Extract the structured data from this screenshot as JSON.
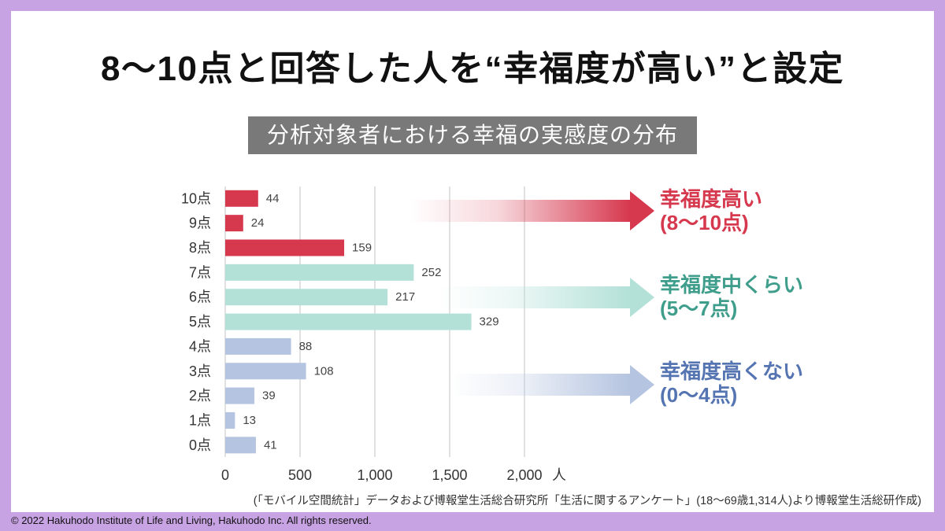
{
  "title": "8〜10点と回答した人を“幸福度が高い”と設定",
  "colors": {
    "frame": "#c8a3e3",
    "panel": "#ffffff",
    "chart_title_box": "#797979"
  },
  "chart_data": {
    "type": "bar",
    "orientation": "horizontal",
    "title": "分析対象者における幸福の実感度の分布",
    "categories": [
      "10点",
      "9点",
      "8点",
      "7点",
      "6点",
      "5点",
      "4点",
      "3点",
      "2点",
      "1点",
      "0点"
    ],
    "values": [
      44,
      24,
      159,
      252,
      217,
      329,
      88,
      108,
      39,
      13,
      41
    ],
    "xlabel": "人",
    "xlim": [
      0,
      2000
    ],
    "x_ticks": [
      0,
      500,
      1000,
      1500,
      2000
    ],
    "x_tick_labels": [
      "0",
      "500",
      "1,000",
      "1,500",
      "2,000"
    ],
    "grid": true,
    "data_labels": true,
    "groups": [
      {
        "name": "幸福度高い",
        "range": "(8〜10点)",
        "categories": [
          "10点",
          "9点",
          "8点"
        ],
        "bar_color": "#d6384e",
        "text_color": "#d6384e"
      },
      {
        "name": "幸福度中くらい",
        "range": "(5〜7点)",
        "categories": [
          "7点",
          "6点",
          "5点"
        ],
        "bar_color": "#b3e1d8",
        "text_color": "#3f9e8b"
      },
      {
        "name": "幸福度高くない",
        "range": "(0〜4点)",
        "categories": [
          "4点",
          "3点",
          "2点",
          "1点",
          "0点"
        ],
        "bar_color": "#b5c4e0",
        "text_color": "#5574b2"
      }
    ]
  },
  "source_note": "(「モバイル空間統計」データおよび博報堂生活総合研究所「生活に関するアンケート」(18〜69歳1,314人)より博報堂生活総研作成)",
  "copyright": "© 2022 Hakuhodo Institute of Life and Living, Hakuhodo Inc. All rights reserved."
}
